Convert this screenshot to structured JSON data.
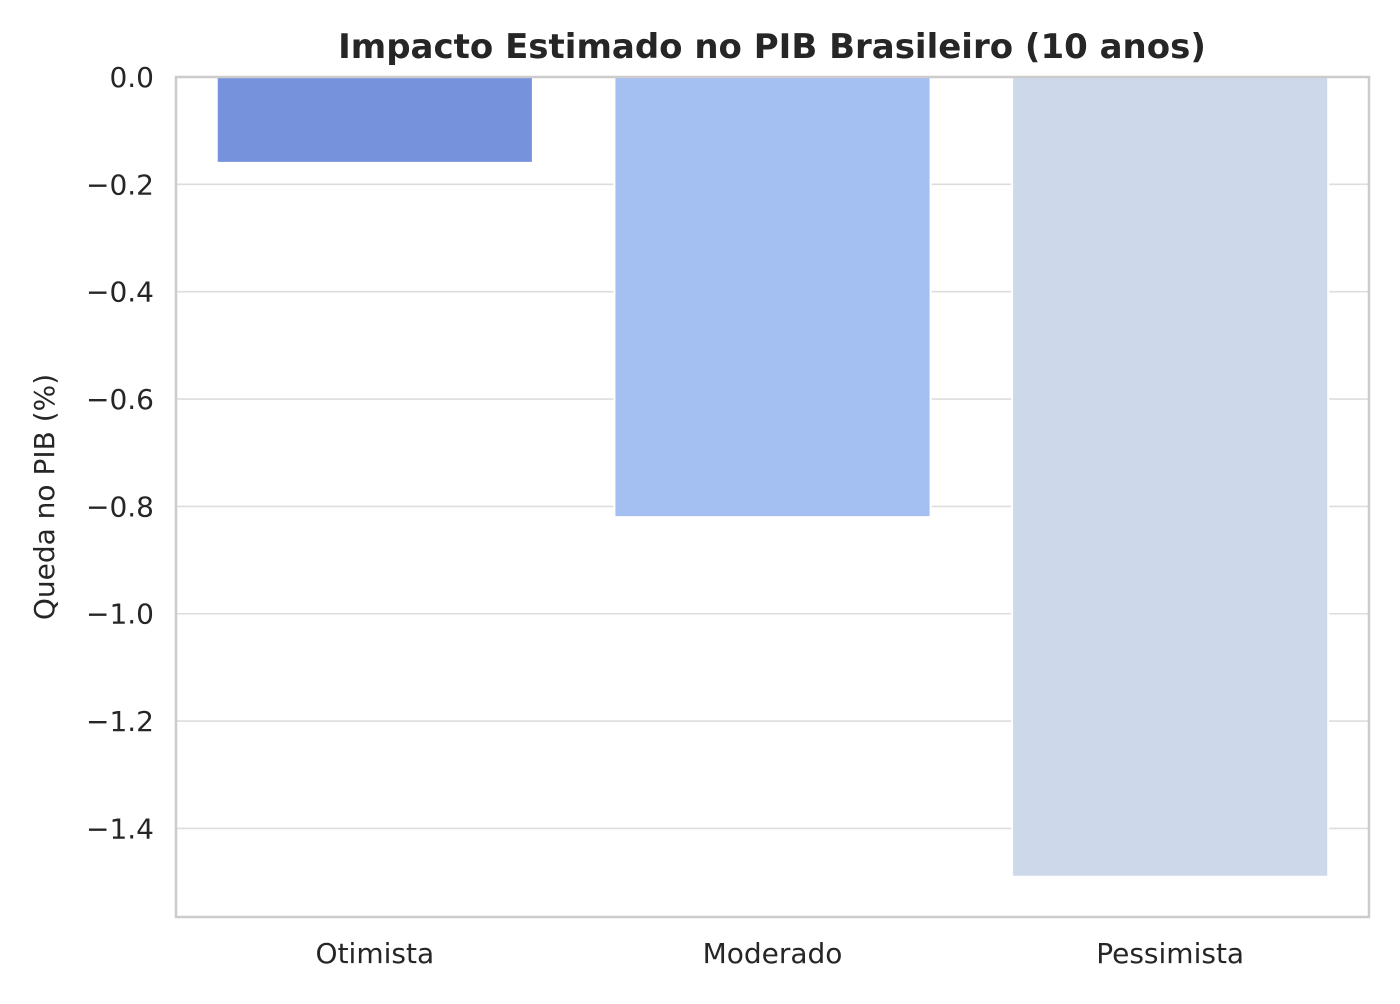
{
  "chart_data": {
    "type": "bar",
    "title": "Impacto Estimado no PIB Brasileiro (10 anos)",
    "xlabel": "",
    "ylabel": "Queda no PIB (%)",
    "categories": [
      "Otimista",
      "Moderado",
      "Pessimista"
    ],
    "values": [
      -0.16,
      -0.82,
      -1.49
    ],
    "colors": [
      "#7792dc",
      "#a4bff2",
      "#cdd8ea"
    ],
    "ylim": [
      -1.565,
      0.0
    ],
    "yticks": [
      0.0,
      -0.2,
      -0.4,
      -0.6,
      -0.8,
      -1.0,
      -1.2,
      -1.4
    ],
    "ytick_labels": [
      "0.0",
      "−0.2",
      "−0.4",
      "−0.6",
      "−0.8",
      "−1.0",
      "−1.2",
      "−1.4"
    ],
    "grid": true,
    "legend": "none"
  }
}
